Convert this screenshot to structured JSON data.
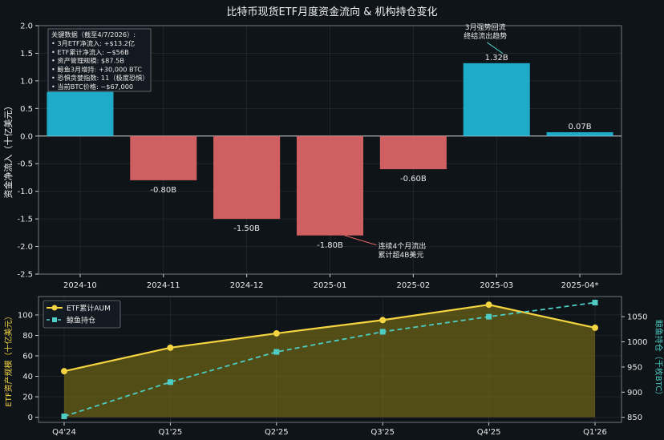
{
  "title": "比特币现货ETF月度资金流向 & 机构持仓变化",
  "chart_data": [
    {
      "type": "bar",
      "categories": [
        "2024-10",
        "2024-11",
        "2024-12",
        "2025-01",
        "2025-02",
        "2025-03",
        "2025-04*"
      ],
      "values": [
        0.8,
        -0.8,
        -1.5,
        -1.8,
        -0.6,
        1.32,
        0.07
      ],
      "value_labels": [
        "",
        "-0.80B",
        "-1.50B",
        "-1.80B",
        "-0.60B",
        "1.32B",
        "0.07B"
      ],
      "ylabel": "资金净流入（十亿美元）",
      "ylim": [
        -2.5,
        2.0
      ],
      "yticks": [
        "2.0",
        "1.5",
        "1.0",
        "0.5",
        "0.0",
        "-0.5",
        "-1.0",
        "-1.5",
        "-2.0",
        "-2.5"
      ],
      "colors": {
        "positive": "#1fb8d8",
        "negative": "#e06666",
        "text": "#e8e8e8",
        "grid": "#3a4048"
      },
      "grid": true,
      "info_box": {
        "title": "关键数据（截至4/7/2026）:",
        "lines": [
          "• 3月ETF净流入: +$13.2亿",
          "• ETF累计净流入: ~$56B",
          "• 资产管理规模: $87.5B",
          "• 鲸鱼3月增持: +30,000 BTC",
          "• 恐惧贪婪指数: 11（极度恐惧）",
          "• 当前BTC价格: ~$67,000"
        ]
      },
      "annotations": [
        {
          "text_lines": [
            "连续4个月流出",
            "累计超4B美元"
          ],
          "category": "2025-01"
        },
        {
          "text_lines": [
            "3月强势回流",
            "终结流出趋势"
          ],
          "category": "2025-03"
        }
      ]
    },
    {
      "type": "line",
      "x": [
        "Q4'24",
        "Q1'25",
        "Q2'25",
        "Q3'25",
        "Q4'25",
        "Q1'26"
      ],
      "series": [
        {
          "name": "ETF累计AUM",
          "axis": "left",
          "values": [
            45,
            68,
            82,
            95,
            110,
            87.5
          ],
          "color": "#f5d442"
        },
        {
          "name": "鲸鱼持仓",
          "axis": "right",
          "values": [
            852,
            920,
            980,
            1020,
            1050,
            1078
          ],
          "color": "#4ecdc4"
        }
      ],
      "ylabel_left": "ETF资产规模（十亿美元）",
      "ylabel_right": "鲸鱼持仓（千枚BTC）",
      "ylim_left": [
        -5,
        118
      ],
      "ylim_right": [
        840,
        1090
      ],
      "yticks_left": [
        "0",
        "20",
        "40",
        "60",
        "80",
        "100"
      ],
      "yticks_right": [
        "850",
        "900",
        "950",
        "1000",
        "1050"
      ],
      "legend_position": "top-left",
      "grid": true
    }
  ]
}
